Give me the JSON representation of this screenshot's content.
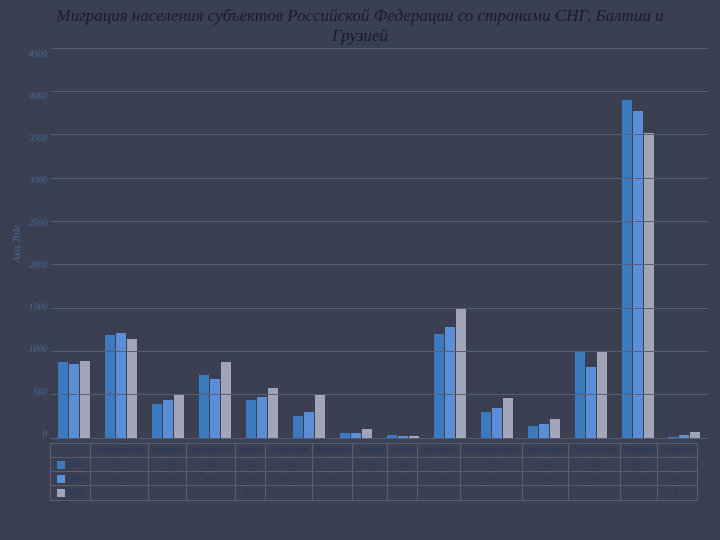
{
  "title": "Миграция населения субъектов Российской Федерации со странами СНГ, Балтии и Грузией",
  "ylabel": "Axis Title",
  "ylim": [
    0,
    4500
  ],
  "ytick_step": 500,
  "yticks": [
    4500,
    4000,
    3500,
    3000,
    2500,
    2000,
    1500,
    1000,
    500,
    0
  ],
  "categories": [
    "Азербайджан",
    "Армения",
    "Белоруссия",
    "Грузия",
    "Казахстан",
    "Киргизия",
    "Латвия",
    "Литва",
    "Молдавия",
    "Таджикистан",
    "Туркмения",
    "Узбекистан",
    "Украина",
    "Эстония"
  ],
  "series": [
    {
      "name": "2008",
      "color": "#3b7abf",
      "values": [
        885,
        1196,
        401,
        733,
        450,
        264,
        69,
        45,
        1210,
        306,
        153,
        1005,
        3911,
        17
      ]
    },
    {
      "name": "2009",
      "color": "#5a8fd8",
      "values": [
        865,
        1218,
        450,
        692,
        482,
        305,
        62,
        36,
        1285,
        351,
        167,
        830,
        3786,
        45
      ]
    },
    {
      "name": "2010",
      "color": "#a2a5b8",
      "values": [
        895,
        1152,
        518,
        891,
        590,
        501,
        118,
        33,
        1511,
        467,
        226,
        1009,
        3524,
        80
      ]
    }
  ],
  "background_color": "#3b3f52",
  "grid_color": "#5a5e72",
  "text_color": "#2a3a5a",
  "axis_text_color": "#4a6a9a"
}
